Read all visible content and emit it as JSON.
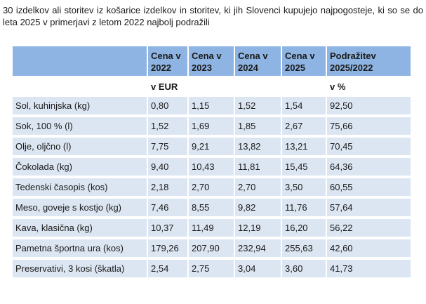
{
  "caption": "30 izdelkov ali storitev iz košarice izdelkov in storitev, ki jih Slovenci kupujejo najpogosteje, ki so se do leta 2025 v primerjavi z letom 2022 najbolj podražili",
  "table": {
    "headers": [
      "",
      "Cena v 2022",
      "Cena v 2023",
      "Cena v 2024",
      "Cena v 2025",
      "Podražitev 2025/2022"
    ],
    "units": [
      "",
      "v EUR",
      "",
      "",
      "",
      "v %"
    ],
    "rows": [
      [
        "Sol, kuhinjska (kg)",
        "0,80",
        "1,15",
        "1,52",
        "1,54",
        "92,50"
      ],
      [
        "Sok, 100 % (l)",
        "1,52",
        "1,69",
        "1,85",
        "2,67",
        "75,66"
      ],
      [
        "Olje, oljčno (l)",
        "7,75",
        "9,21",
        "13,82",
        "13,21",
        "70,45"
      ],
      [
        "Čokolada (kg)",
        "9,40",
        "10,43",
        "11,81",
        "15,45",
        "64,36"
      ],
      [
        "Tedenski časopis (kos)",
        "2,18",
        "2,70",
        "2,70",
        "3,50",
        "60,55"
      ],
      [
        "Meso, goveje s kostjo (kg)",
        "7,46",
        "8,55",
        "9,82",
        "11,76",
        "57,64"
      ],
      [
        "Kava, klasična (kg)",
        "10,37",
        "11,49",
        "12,19",
        "16,20",
        "56,22"
      ],
      [
        "Pametna športna ura (kos)",
        "179,26",
        "207,90",
        "232,94",
        "255,63",
        "42,60"
      ],
      [
        "Preservativi, 3 kosi (škatla)",
        "2,54",
        "2,75",
        "3,04",
        "3,60",
        "41,73"
      ]
    ]
  },
  "colors": {
    "header_bg": "#8eb4e3",
    "row_bg": "#dce6f2"
  }
}
